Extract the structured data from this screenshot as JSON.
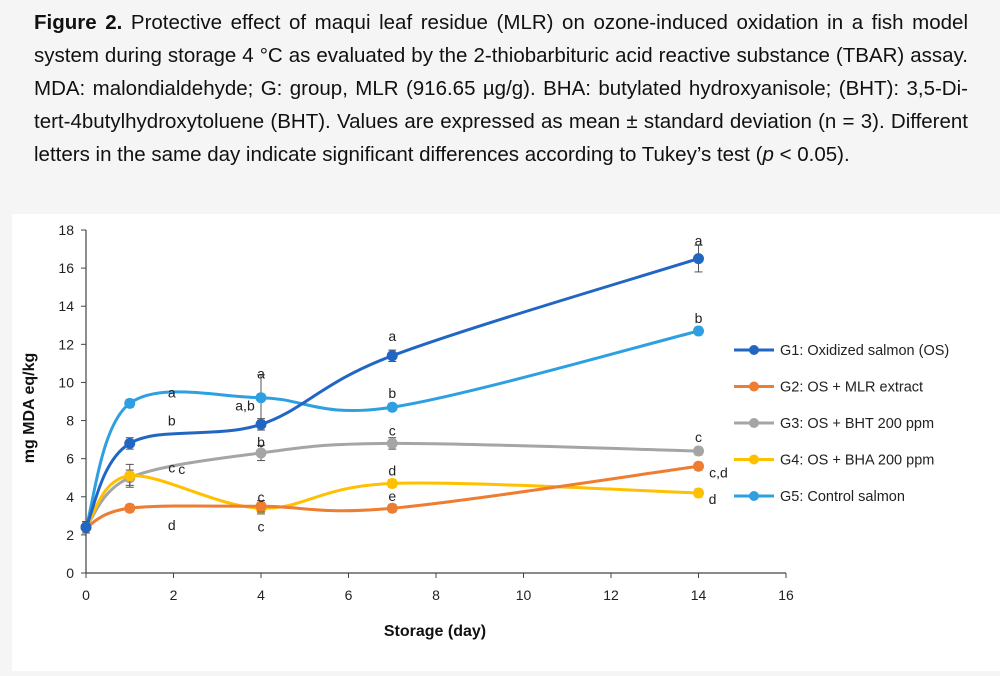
{
  "caption": {
    "figure_label": "Figure 2.",
    "text_1": " Protective effect of maqui leaf residue (MLR) on ozone-induced oxidation in a fish model system during storage 4 °C as evaluated by the 2-thiobarbituric acid reactive substance (TBAR) assay. MDA: malondialdehyde; G: group, MLR (916.65 µg/g). BHA: butylated hydroxyanisole; (BHT): 3,5-Di-tert-4butylhydroxytoluene (BHT). Values are expressed as mean ± standard deviation (n = 3). Different letters in the same day indicate significant differences according to Tukey’s test (",
    "p_symbol": "p",
    "text_2": " < 0.05)."
  },
  "chart_data": {
    "type": "line",
    "xlabel": "Storage (day)",
    "ylabel": "mg MDA eq/kg",
    "xlim": [
      0,
      16
    ],
    "ylim": [
      0,
      18
    ],
    "xticks": [
      0,
      2,
      4,
      6,
      8,
      10,
      12,
      14,
      16
    ],
    "yticks": [
      0,
      2,
      4,
      6,
      8,
      10,
      12,
      14,
      16,
      18
    ],
    "grid": false,
    "legend_position": "right",
    "x": [
      0,
      1,
      4,
      7,
      14
    ],
    "series": [
      {
        "name": "G1: Oxidized salmon (OS)",
        "color": "#2266c4",
        "values": [
          2.4,
          6.8,
          7.8,
          11.4,
          16.5
        ],
        "errors": [
          0.3,
          0.3,
          0.3,
          0.3,
          0.7
        ],
        "letters": [
          "",
          "b",
          "a,b",
          "a",
          "a"
        ]
      },
      {
        "name": "G2: OS + MLR extract",
        "color": "#ee7d31",
        "values": [
          2.4,
          3.4,
          3.5,
          3.4,
          5.6
        ],
        "errors": [
          0.3,
          0.2,
          0.3,
          0.2,
          0.2
        ],
        "letters": [
          "",
          "d",
          "c",
          "e",
          "c,d"
        ]
      },
      {
        "name": "G3: OS + BHT 200 ppm",
        "color": "#a5a5a5",
        "values": [
          2.4,
          5.0,
          6.3,
          6.8,
          6.4
        ],
        "errors": [
          0.3,
          0.4,
          0.4,
          0.3,
          0.2
        ],
        "letters": [
          "",
          "c",
          "b",
          "c",
          "c"
        ]
      },
      {
        "name": "G4: OS + BHA 200 ppm",
        "color": "#ffc000",
        "values": [
          2.4,
          5.1,
          3.4,
          4.7,
          4.2
        ],
        "errors": [
          0.3,
          0.6,
          0.3,
          0.2,
          0.2
        ],
        "letters": [
          "",
          "c",
          "c",
          "d",
          "d"
        ]
      },
      {
        "name": "G5: Control salmon",
        "color": "#2ea0e2",
        "values": [
          2.4,
          8.9,
          9.2,
          8.7,
          12.7
        ],
        "errors": [
          0.3,
          0.2,
          1.2,
          0.2,
          0.2
        ],
        "letters": [
          "",
          "a",
          "a",
          "b",
          "b"
        ]
      }
    ]
  }
}
